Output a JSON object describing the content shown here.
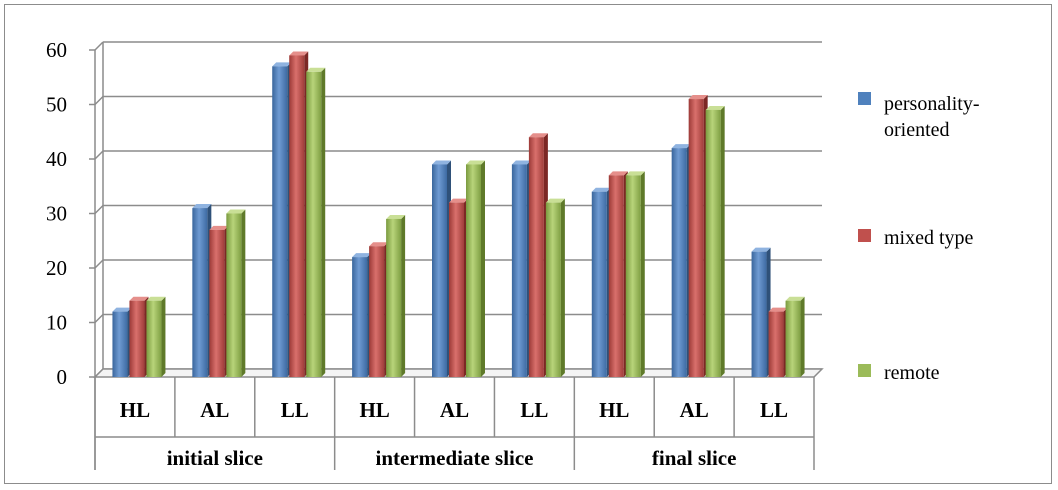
{
  "chart_data": {
    "type": "bar",
    "title": "",
    "xlabel": "",
    "ylabel": "",
    "ylim": [
      0,
      60
    ],
    "yticks": [
      "0",
      "10",
      "20",
      "30",
      "40",
      "50",
      "60"
    ],
    "categories": [
      "HL",
      "AL",
      "LL",
      "HL",
      "AL",
      "LL",
      "HL",
      "AL",
      "LL"
    ],
    "groups": [
      "initial slice",
      "intermediate slice",
      "final slice"
    ],
    "grid": true,
    "legend_position": "right",
    "series": [
      {
        "name": "personality-oriented",
        "color": "#4f81bd",
        "values": [
          12,
          31,
          57,
          22,
          39,
          39,
          34,
          42,
          23
        ]
      },
      {
        "name": "mixed type",
        "color": "#c0504d",
        "values": [
          14,
          27,
          59,
          24,
          32,
          44,
          37,
          51,
          12
        ]
      },
      {
        "name": "remote",
        "color": "#9bbb59",
        "values": [
          14,
          30,
          56,
          29,
          39,
          32,
          37,
          49,
          14
        ]
      }
    ]
  },
  "legend": {
    "items": [
      {
        "lines": [
          "personality-",
          "oriented"
        ]
      },
      {
        "lines": [
          "mixed type"
        ]
      },
      {
        "lines": [
          "remote"
        ]
      }
    ]
  }
}
